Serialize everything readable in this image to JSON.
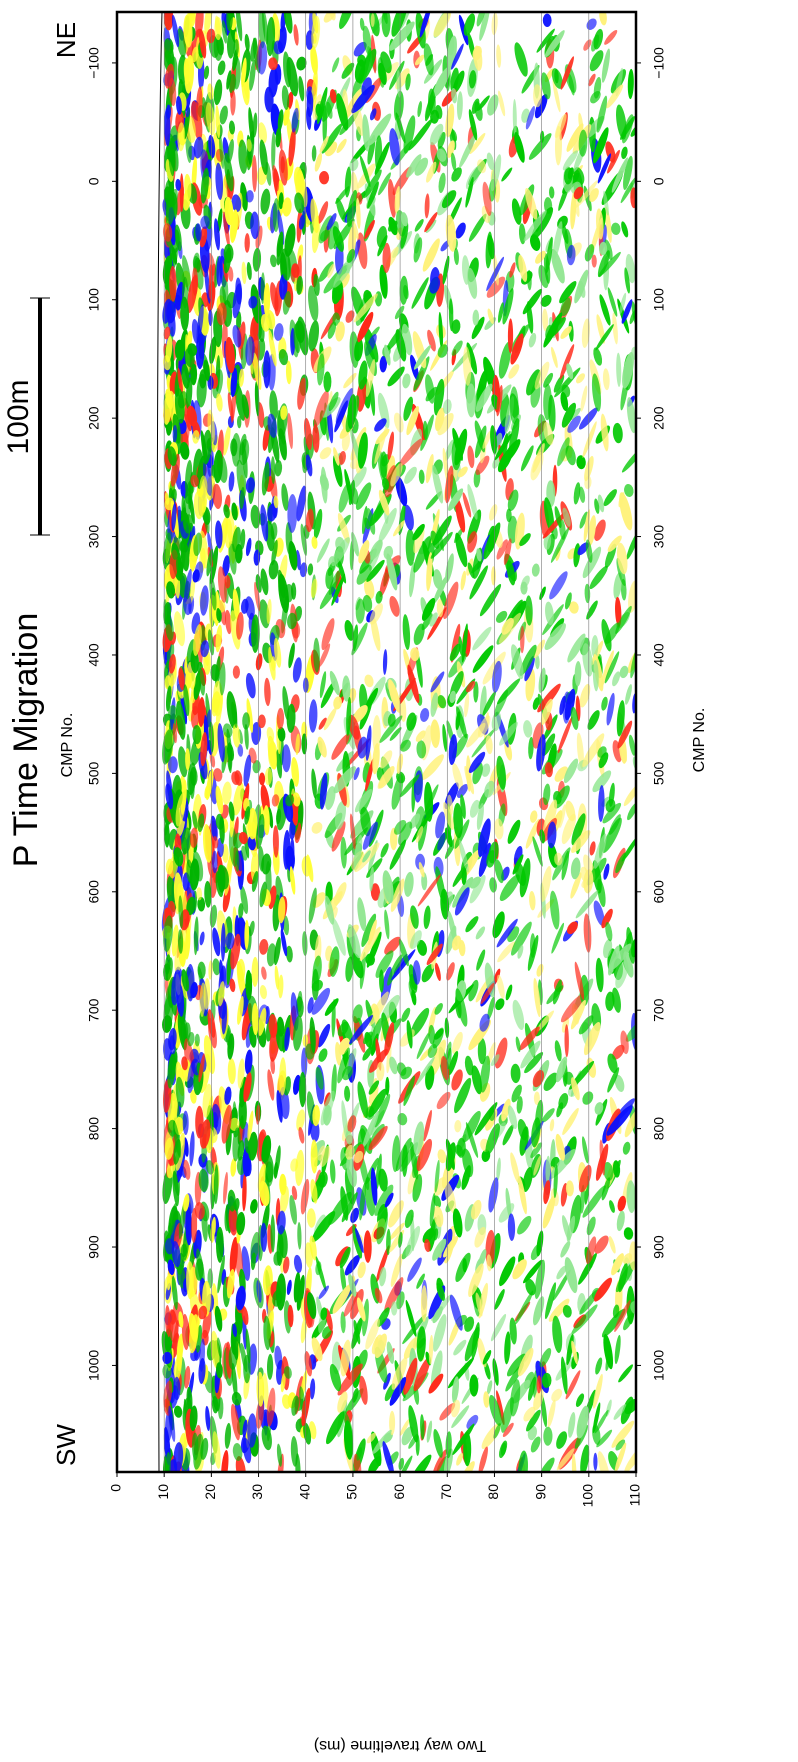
{
  "chart_data": {
    "type": "seismic-section",
    "title": "P Time Migration",
    "x_label": "CMP No.",
    "y_label": "Two way traveltime (ms)",
    "annotations": [
      "SW",
      "NE"
    ],
    "scale_bar": "100m",
    "xlim": [
      -143,
      1090
    ],
    "xticks": [
      {
        "value": -100,
        "label": "−100"
      },
      0,
      100,
      200,
      300,
      400,
      500,
      600,
      700,
      800,
      900,
      1000
    ],
    "ylim": [
      0,
      110
    ],
    "yticks": [
      0,
      10,
      20,
      30,
      40,
      50,
      60,
      70,
      80,
      90,
      100,
      110
    ],
    "grid": true
  }
}
